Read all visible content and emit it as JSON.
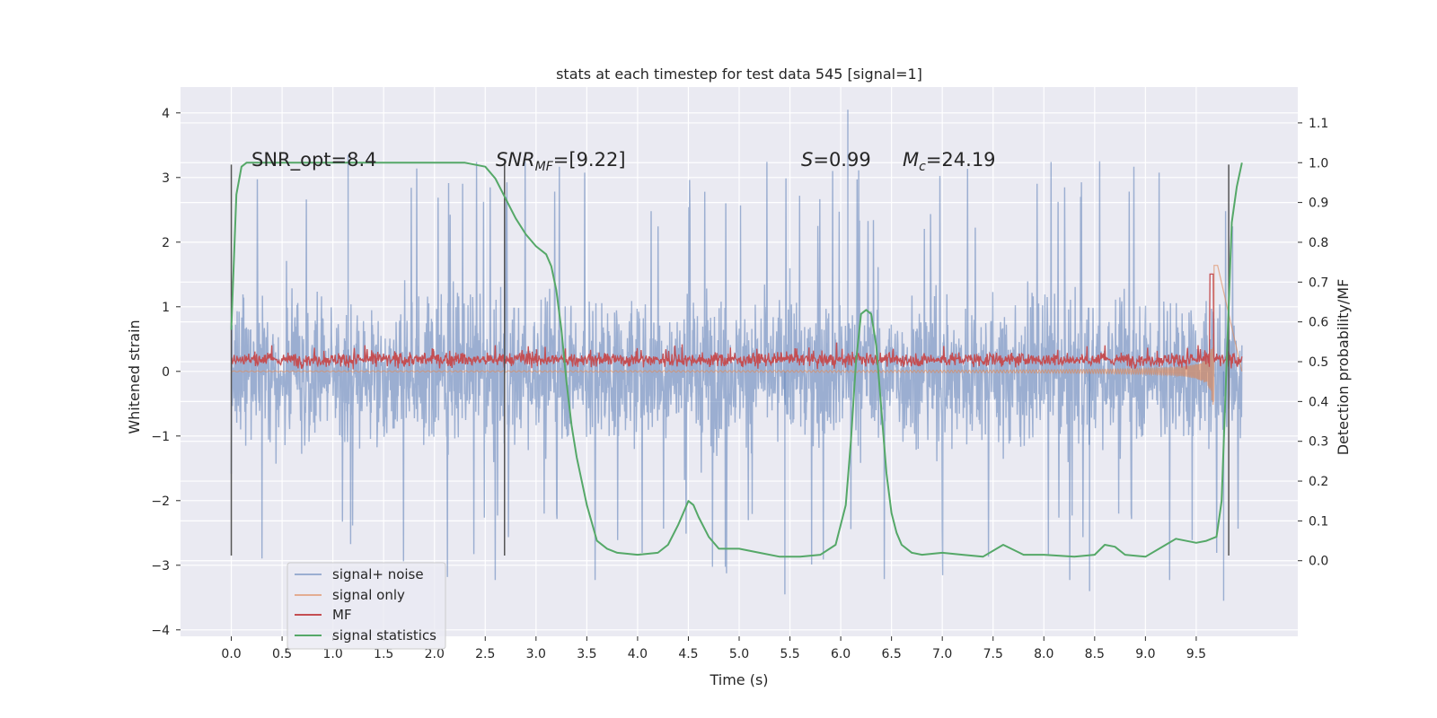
{
  "chart_data": {
    "type": "line",
    "title": "stats at each timestep for test data 545 [signal=1]",
    "xlabel": "Time (s)",
    "ylabel": "Whitened strain",
    "y2label": "Detection probability/MF",
    "xlim": [
      -0.5,
      10.5
    ],
    "ylim": [
      -4.1,
      4.4
    ],
    "y2lim": [
      -0.19,
      1.19
    ],
    "xticks": [
      0.0,
      0.5,
      1.0,
      1.5,
      2.0,
      2.5,
      3.0,
      3.5,
      4.0,
      4.5,
      5.0,
      5.5,
      6.0,
      6.5,
      7.0,
      7.5,
      8.0,
      8.5,
      9.0,
      9.5
    ],
    "yticks": [
      -4,
      -3,
      -2,
      -1,
      0,
      1,
      2,
      3,
      4
    ],
    "y2ticks": [
      0.0,
      0.1,
      0.2,
      0.3,
      0.4,
      0.5,
      0.6,
      0.7,
      0.8,
      0.9,
      1.0,
      1.1
    ],
    "y2_tick_labels": [
      "0.0",
      "0.1",
      "0.2",
      "0.3",
      "0.4",
      "0.5",
      "0.6",
      "0.7",
      "0.8",
      "0.9",
      "1.0",
      "1.1"
    ],
    "grid": true,
    "legend_position": "lower-left",
    "annotations": {
      "snr_opt": "SNR_opt=8.4",
      "snr_mf_main": "SNR",
      "snr_mf_sub": "MF",
      "snr_mf_rest": "=[9.22]",
      "s_main": "S",
      "s_rest": "=0.99",
      "mc_main": "M",
      "mc_sub": "c",
      "mc_rest": "=24.19"
    },
    "vertical_markers_x": [
      0.0,
      2.69,
      9.82
    ],
    "series": [
      {
        "name": "signal+ noise",
        "axis": "left",
        "color": "#4c72b0",
        "style": "dense noise, amplitude about ±2, peaks up to 4.05 near 6.07 and down to -3.55 near 9.77",
        "x_range": [
          0.0,
          9.95
        ]
      },
      {
        "name": "signal only",
        "axis": "left",
        "color": "#dd8452",
        "style": "chirp growing in amplitude toward merger near 9.65 s (peak ±1.8)",
        "x_range": [
          0.0,
          9.95
        ]
      },
      {
        "name": "MF",
        "axis": "right",
        "color": "#c44e52",
        "style": "near 0.48–0.54 with spike to 0.72 at 9.65 s",
        "x_range": [
          0.0,
          9.95
        ]
      },
      {
        "name": "signal statistics",
        "axis": "right",
        "color": "#55a868",
        "x": [
          0.0,
          0.05,
          0.1,
          0.15,
          0.2,
          0.5,
          1.0,
          1.5,
          2.0,
          2.3,
          2.5,
          2.6,
          2.7,
          2.8,
          2.9,
          3.0,
          3.1,
          3.15,
          3.2,
          3.25,
          3.3,
          3.35,
          3.4,
          3.5,
          3.6,
          3.7,
          3.8,
          4.0,
          4.2,
          4.3,
          4.4,
          4.5,
          4.55,
          4.6,
          4.7,
          4.8,
          5.0,
          5.2,
          5.4,
          5.6,
          5.8,
          5.95,
          6.05,
          6.1,
          6.15,
          6.2,
          6.25,
          6.3,
          6.35,
          6.4,
          6.45,
          6.5,
          6.55,
          6.6,
          6.7,
          6.8,
          7.0,
          7.2,
          7.4,
          7.6,
          7.8,
          8.0,
          8.3,
          8.5,
          8.6,
          8.7,
          8.8,
          9.0,
          9.2,
          9.3,
          9.5,
          9.6,
          9.7,
          9.75,
          9.8,
          9.85,
          9.9,
          9.95
        ],
        "y": [
          0.58,
          0.92,
          0.99,
          1.0,
          1.0,
          1.0,
          1.0,
          1.0,
          1.0,
          1.0,
          0.99,
          0.96,
          0.91,
          0.86,
          0.82,
          0.79,
          0.77,
          0.74,
          0.68,
          0.58,
          0.45,
          0.34,
          0.26,
          0.14,
          0.05,
          0.03,
          0.02,
          0.015,
          0.02,
          0.04,
          0.09,
          0.15,
          0.14,
          0.11,
          0.06,
          0.03,
          0.03,
          0.02,
          0.01,
          0.01,
          0.015,
          0.04,
          0.14,
          0.3,
          0.5,
          0.62,
          0.63,
          0.62,
          0.54,
          0.38,
          0.22,
          0.12,
          0.07,
          0.04,
          0.02,
          0.015,
          0.02,
          0.015,
          0.01,
          0.04,
          0.015,
          0.015,
          0.01,
          0.015,
          0.04,
          0.035,
          0.015,
          0.01,
          0.04,
          0.055,
          0.045,
          0.05,
          0.06,
          0.15,
          0.5,
          0.85,
          0.94,
          1.0
        ]
      }
    ]
  }
}
